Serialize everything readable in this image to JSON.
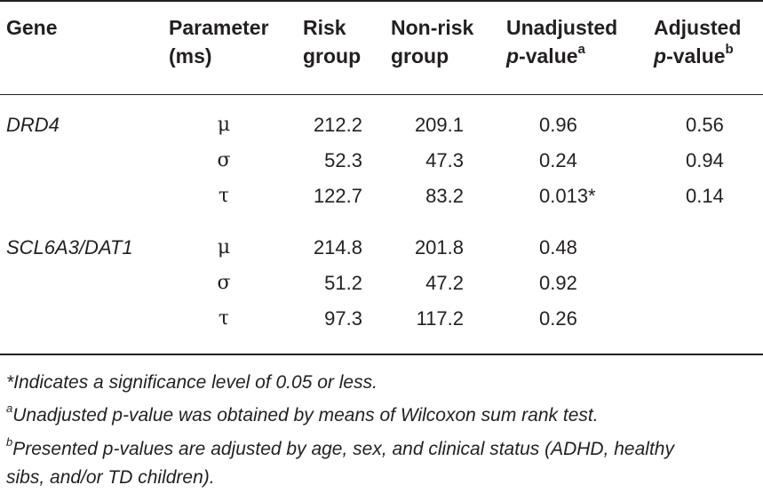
{
  "headers": {
    "gene": "Gene",
    "parameter": "Parameter",
    "parameter_unit": "(ms)",
    "risk_line1": "Risk",
    "risk_line2": "group",
    "nonrisk_line1": "Non-risk",
    "nonrisk_line2": "group",
    "unadj_line1": "Unadjusted",
    "unadj_p": "p",
    "unadj_value": "-value",
    "unadj_sup": "a",
    "adj_line1": "Adjusted",
    "adj_p": "p",
    "adj_value": "-value",
    "adj_sup": "b"
  },
  "rows": [
    {
      "gene": "DRD4",
      "param": "μ",
      "risk": "212.2",
      "nonrisk": "209.1",
      "unadjusted": "0.96",
      "adjusted": "0.56"
    },
    {
      "gene": "",
      "param": "σ",
      "risk": "52.3",
      "nonrisk": "47.3",
      "unadjusted": "0.24",
      "adjusted": "0.94"
    },
    {
      "gene": "",
      "param": "τ",
      "risk": "122.7",
      "nonrisk": "83.2",
      "unadjusted": "0.013*",
      "adjusted": "0.14"
    },
    {
      "gene": "SCL6A3/DAT1",
      "param": "μ",
      "risk": "214.8",
      "nonrisk": "201.8",
      "unadjusted": "0.48",
      "adjusted": ""
    },
    {
      "gene": "",
      "param": "σ",
      "risk": "51.2",
      "nonrisk": "47.2",
      "unadjusted": "0.92",
      "adjusted": ""
    },
    {
      "gene": "",
      "param": "τ",
      "risk": "97.3",
      "nonrisk": "117.2",
      "unadjusted": "0.26",
      "adjusted": ""
    }
  ],
  "footnotes": {
    "star": "*Indicates a significance level of 0.05 or less.",
    "a_mark": "a",
    "a_text": "Unadjusted p-value was obtained by means of Wilcoxon sum rank test.",
    "b_mark": "b",
    "b_text_line1": "Presented p-values are adjusted by age, sex, and clinical status (ADHD, healthy",
    "b_text_line2": "sibs, and/or TD children)."
  }
}
